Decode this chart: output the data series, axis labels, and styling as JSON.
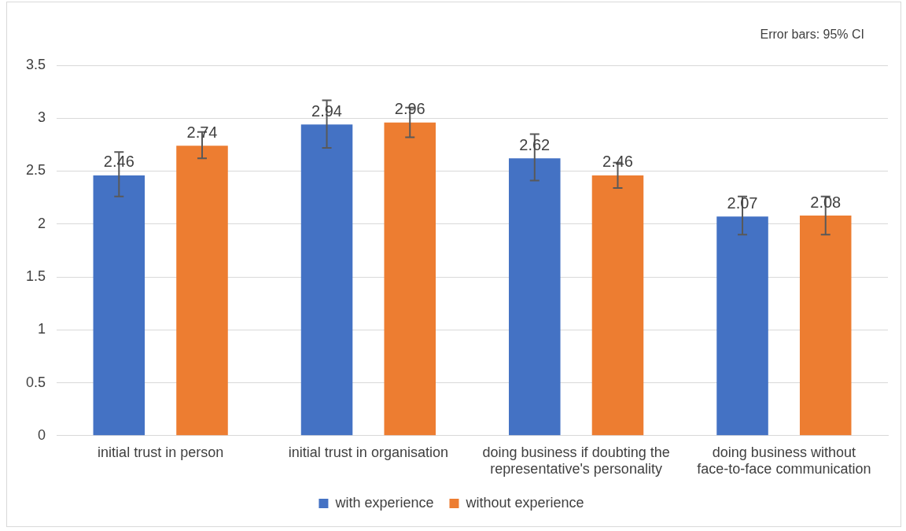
{
  "chart_data": {
    "type": "bar",
    "categories": [
      "initial trust in person",
      "initial trust in organisation",
      "doing business if doubting the representative's personality",
      "doing business without face-to-face communication"
    ],
    "series": [
      {
        "name": "with experience",
        "color": "#4472c4",
        "values": [
          2.46,
          2.94,
          2.62,
          2.07
        ],
        "errors": [
          [
            2.26,
            2.68
          ],
          [
            2.72,
            3.17
          ],
          [
            2.41,
            2.85
          ],
          [
            1.9,
            2.26
          ]
        ]
      },
      {
        "name": "without experience",
        "color": "#ed7d31",
        "values": [
          2.74,
          2.96,
          2.46,
          2.08
        ],
        "errors": [
          [
            2.62,
            2.87
          ],
          [
            2.82,
            3.1
          ],
          [
            2.34,
            2.58
          ],
          [
            1.9,
            2.26
          ]
        ]
      }
    ],
    "ylim": [
      0,
      3.5
    ],
    "yticks": [
      0,
      0.5,
      1,
      1.5,
      2,
      2.5,
      3,
      3.5
    ],
    "grid": "y",
    "legend": "bottom",
    "data_labels": true,
    "annotations": [
      "Error bars: 95% CI"
    ]
  }
}
